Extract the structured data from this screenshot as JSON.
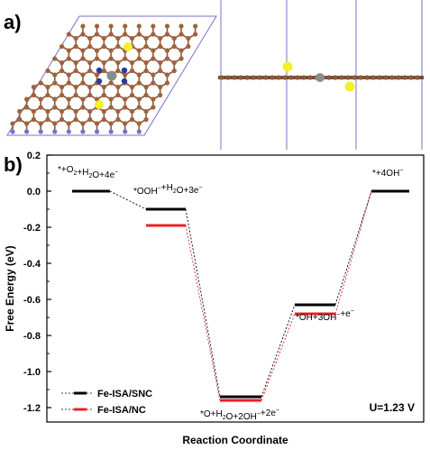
{
  "panels": {
    "a_label": "a)",
    "b_label": "b)"
  },
  "structure": {
    "legend_symbol": ""
  },
  "chart_data": {
    "type": "line",
    "ylabel": "Free Energy (eV)",
    "xlabel": "Reaction Coordinate",
    "ylim": [
      -1.25,
      0.2
    ],
    "yticks": [
      0.2,
      0.0,
      -0.2,
      -0.4,
      -0.6,
      -0.8,
      -1.0,
      -1.2
    ],
    "ytick_labels": [
      "0.2",
      "0.0",
      "-0.2",
      "-0.4",
      "-0.6",
      "-0.8",
      "-1.0",
      "-1.2"
    ],
    "steps": [
      {
        "label_html": "*+O<sub>2</sub>+H<sub>2</sub>O+4e<sup>−</sup>"
      },
      {
        "label_html": "*OOH<sup>−</sup>+H<sub>2</sub>O+3e<sup>−</sup>"
      },
      {
        "label_html": "*O+H<sub>2</sub>O+2OH<sup>−</sup>+2e<sup>−</sup>"
      },
      {
        "label_html": "*OH+3OH<sup>−</sup>+e<sup>−</sup>"
      },
      {
        "label_html": "*+4OH<sup>−</sup>"
      }
    ],
    "step_labels": [
      "*+O2+H2O+4e−",
      "*OOH−+H2O+3e−",
      "*O+H2O+2OH−+2e−",
      "*OH+3OH−+e−",
      "*+4OH−"
    ],
    "series": [
      {
        "name": "Fe-ISA/SNC",
        "color": "#000000",
        "values": [
          0.0,
          -0.1,
          -1.14,
          -0.63,
          0.0
        ]
      },
      {
        "name": "Fe-ISA/NC",
        "color": "#e8212b",
        "values": [
          0.0,
          -0.19,
          -1.16,
          -0.68,
          0.0
        ]
      }
    ],
    "annotation": "U=1.23 V",
    "legend_position": "bottom-left",
    "grid": false
  }
}
